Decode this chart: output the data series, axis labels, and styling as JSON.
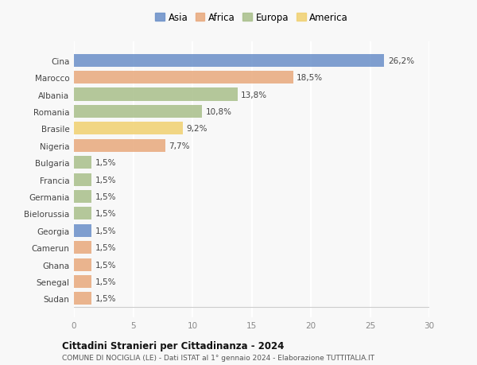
{
  "countries": [
    "Cina",
    "Marocco",
    "Albania",
    "Romania",
    "Brasile",
    "Nigeria",
    "Bulgaria",
    "Francia",
    "Germania",
    "Bielorussia",
    "Georgia",
    "Camerun",
    "Ghana",
    "Senegal",
    "Sudan"
  ],
  "values": [
    26.2,
    18.5,
    13.8,
    10.8,
    9.2,
    7.7,
    1.5,
    1.5,
    1.5,
    1.5,
    1.5,
    1.5,
    1.5,
    1.5,
    1.5
  ],
  "labels": [
    "26,2%",
    "18,5%",
    "13,8%",
    "10,8%",
    "9,2%",
    "7,7%",
    "1,5%",
    "1,5%",
    "1,5%",
    "1,5%",
    "1,5%",
    "1,5%",
    "1,5%",
    "1,5%",
    "1,5%"
  ],
  "colors": [
    "#6a8fc8",
    "#e8a87c",
    "#a8bf8a",
    "#a8bf8a",
    "#f0d070",
    "#e8a87c",
    "#a8bf8a",
    "#a8bf8a",
    "#a8bf8a",
    "#a8bf8a",
    "#6a8fc8",
    "#e8a87c",
    "#e8a87c",
    "#e8a87c",
    "#e8a87c"
  ],
  "legend_labels": [
    "Asia",
    "Africa",
    "Europa",
    "America"
  ],
  "legend_colors": [
    "#6a8fc8",
    "#e8a87c",
    "#a8bf8a",
    "#f0d070"
  ],
  "title": "Cittadini Stranieri per Cittadinanza - 2024",
  "subtitle": "COMUNE DI NOCIGLIA (LE) - Dati ISTAT al 1° gennaio 2024 - Elaborazione TUTTITALIA.IT",
  "xlim": [
    0,
    30
  ],
  "xticks": [
    0,
    5,
    10,
    15,
    20,
    25,
    30
  ],
  "background_color": "#f8f8f8",
  "bar_height": 0.75,
  "label_fontsize": 7.5,
  "tick_fontsize": 7.5,
  "legend_fontsize": 8.5
}
